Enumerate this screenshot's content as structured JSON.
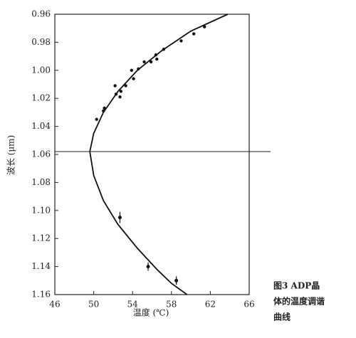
{
  "chart_data": {
    "type": "scatter",
    "xlabel": "温度 (℃)",
    "ylabel": "波长 (μm)",
    "caption": [
      "图3 ADP晶",
      "体的温度调谐",
      "曲线"
    ],
    "xlim": [
      46,
      66
    ],
    "ylim": [
      0.96,
      1.16
    ],
    "y_inverted": true,
    "xticks": [
      46,
      50,
      54,
      58,
      62,
      66
    ],
    "yticks": [
      0.96,
      0.98,
      {
        "value": 1,
        "label": "1.00"
      },
      1.02,
      1.04,
      1.06,
      1.08,
      {
        "value": 1.1,
        "label": "1.10"
      },
      1.12,
      1.14,
      1.16
    ],
    "color": "#111",
    "points": {
      "x": [
        50.3,
        51.0,
        51.1,
        52.2,
        52.3,
        52.8,
        52.7,
        53.3,
        53.9,
        54.1,
        54.6,
        55.2,
        55.9,
        56.4,
        56.5,
        57.2,
        59.0,
        60.3,
        61.4
      ],
      "y": [
        1.035,
        1.029,
        1.027,
        1.011,
        1.017,
        1.015,
        1.019,
        1.011,
        1.0,
        1.006,
        0.999,
        0.994,
        0.994,
        0.989,
        0.992,
        0.985,
        0.979,
        0.974,
        0.969
      ]
    },
    "error_points": {
      "x": [
        52.7,
        55.6,
        58.5
      ],
      "y": [
        1.105,
        1.14,
        1.15
      ],
      "yerr": [
        0.004,
        0.003,
        0.003
      ]
    },
    "curve": {
      "x": [
        63.8,
        60,
        57,
        54.5,
        52.5,
        51,
        50,
        49.6,
        50,
        51,
        52.5,
        54.5,
        56.5,
        58,
        59.6
      ],
      "y": [
        0.96,
        0.972,
        0.986,
        1.0,
        1.015,
        1.03,
        1.045,
        1.058,
        1.075,
        1.093,
        1.11,
        1.127,
        1.142,
        1.152,
        1.16
      ]
    },
    "hline": 1.058
  }
}
